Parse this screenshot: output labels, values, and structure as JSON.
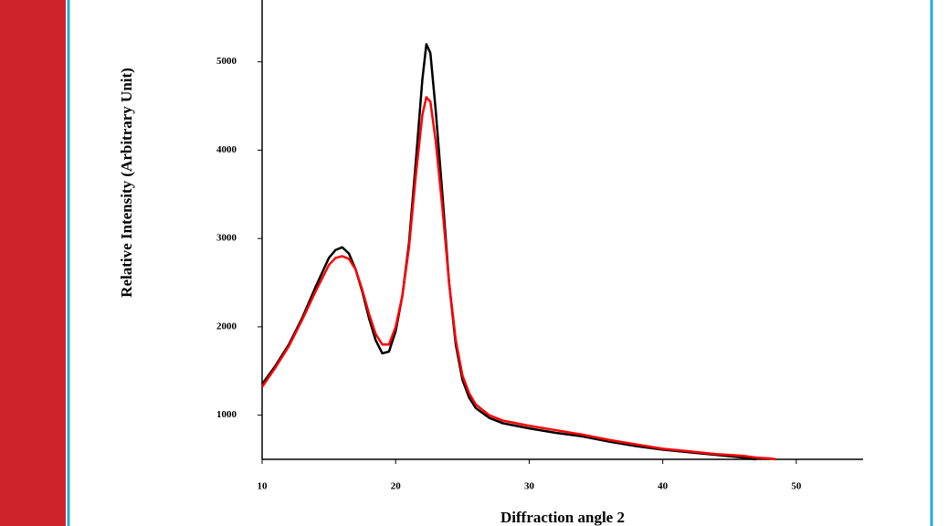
{
  "chart_data": {
    "type": "line",
    "xlabel": "Diffraction angle 2",
    "ylabel": "Relative Intensity (Arbitrary Unit)",
    "x": [
      10,
      11,
      12,
      13,
      14,
      15,
      15.5,
      16,
      16.5,
      17,
      17.5,
      18,
      18.5,
      19,
      19.5,
      20,
      20.5,
      21,
      21.5,
      22,
      22.3,
      22.6,
      23,
      23.5,
      24,
      24.5,
      25,
      25.5,
      26,
      27,
      28,
      30,
      32,
      34,
      36,
      38,
      40,
      42,
      44,
      46,
      47,
      48,
      48.5
    ],
    "series": [
      {
        "color": "#000000",
        "values": [
          1350,
          1560,
          1800,
          2100,
          2450,
          2780,
          2870,
          2900,
          2830,
          2650,
          2400,
          2100,
          1850,
          1700,
          1720,
          1950,
          2350,
          2950,
          3850,
          4800,
          5200,
          5100,
          4450,
          3500,
          2500,
          1800,
          1400,
          1200,
          1080,
          970,
          910,
          850,
          800,
          760,
          700,
          650,
          610,
          580,
          550,
          520,
          500,
          null,
          null
        ]
      },
      {
        "color": "#ff0000",
        "values": [
          1320,
          1540,
          1780,
          2080,
          2400,
          2700,
          2780,
          2800,
          2770,
          2650,
          2420,
          2150,
          1920,
          1800,
          1800,
          2000,
          2350,
          2900,
          3700,
          4400,
          4600,
          4550,
          4100,
          3350,
          2500,
          1850,
          1450,
          1250,
          1120,
          1000,
          940,
          880,
          830,
          780,
          720,
          670,
          620,
          590,
          560,
          540,
          520,
          510,
          500
        ]
      }
    ],
    "xlim": [
      10,
      55
    ],
    "xticks": [
      10,
      20,
      30,
      40,
      50
    ],
    "ylim": [
      500,
      5700
    ],
    "yticks": [
      1000,
      2000,
      3000,
      4000,
      5000
    ]
  }
}
